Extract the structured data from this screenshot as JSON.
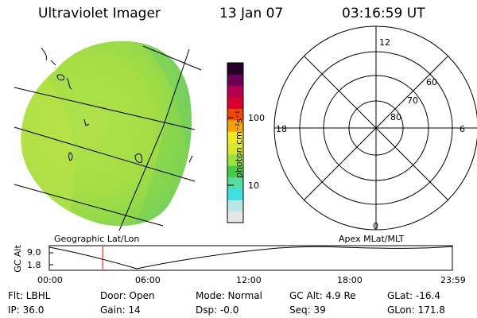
{
  "header": {
    "title": "Ultraviolet Imager",
    "date": "13 Jan 07",
    "time": "03:16:59 UT"
  },
  "image_panel": {
    "label": "Geographic Lat/Lon"
  },
  "colorbar": {
    "unit_label": "photon cm⁻²s⁻¹",
    "tick_labels": [
      "100",
      "10"
    ],
    "colors": [
      "#e6e6e6",
      "#b7e7e6",
      "#3ddfe2",
      "#55dda0",
      "#45cc45",
      "#9be13c",
      "#d5ea2f",
      "#f2e81e",
      "#f6a200",
      "#ef4a00",
      "#d8002e",
      "#b4004d",
      "#6c0058",
      "#250027"
    ]
  },
  "polar_plot": {
    "label": "Apex MLat/MLT",
    "mlt_labels": {
      "top": "12",
      "left": "18",
      "right": "6",
      "bottom": "0"
    },
    "mlat_labels": [
      "60",
      "70",
      "80"
    ]
  },
  "altitude_plot": {
    "ylabel": "GC Alt",
    "yticks": [
      "9.0",
      "1.8"
    ],
    "xticks": [
      "00:00",
      "06:00",
      "12:00",
      "18:00",
      "23:59"
    ],
    "current_time_fraction": 0.1325
  },
  "info": {
    "flt": "Flt: LBHL",
    "ip": "IP: 36.0",
    "door": "Door: Open",
    "gain": "Gain: 14",
    "mode": "Mode: Normal",
    "dsp": "Dsp:   -0.0",
    "gcalt": "GC Alt: 4.9 Re",
    "seq": "Seq: 39",
    "glat": "GLat: -16.4",
    "glon": "GLon: 171.8"
  }
}
